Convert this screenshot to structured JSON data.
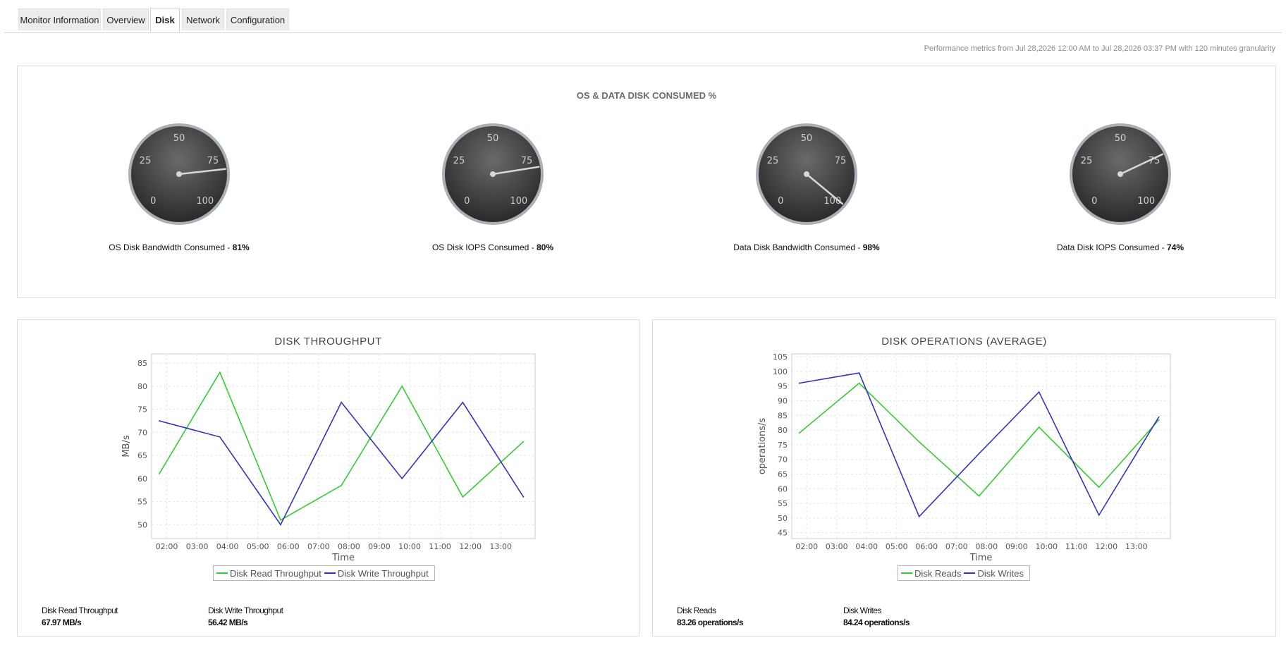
{
  "tabs": [
    "Monitor Information",
    "Overview",
    "Disk",
    "Network",
    "Configuration"
  ],
  "active_tab": "Disk",
  "perf_note": "Performance metrics from Jul 28,2026 12:00 AM to Jul 28,2026 03:37 PM with 120 minutes granularity",
  "gauges_panel": {
    "title": "OS & DATA DISK CONSUMED %",
    "gauges": [
      {
        "label": "OS Disk Bandwidth Consumed - ",
        "value_text": "81%",
        "value": 81
      },
      {
        "label": "OS Disk IOPS Consumed - ",
        "value_text": "80%",
        "value": 80
      },
      {
        "label": "Data Disk Bandwidth Consumed - ",
        "value_text": "98%",
        "value": 98
      },
      {
        "label": "Data Disk IOPS Consumed - ",
        "value_text": "74%",
        "value": 74
      }
    ],
    "scale_ticks": [
      "0",
      "25",
      "50",
      "75",
      "100"
    ]
  },
  "throughput_panel": {
    "stats": [
      {
        "label": "Disk Read Throughput",
        "value": "67.97 MB/s"
      },
      {
        "label": "Disk Write Throughput",
        "value": "56.42 MB/s"
      }
    ]
  },
  "operations_panel": {
    "stats": [
      {
        "label": "Disk Reads",
        "value": "83.26 operations/s"
      },
      {
        "label": "Disk Writes",
        "value": "84.24 operations/s"
      }
    ]
  },
  "chart_data": [
    {
      "type": "line",
      "title": "DISK THROUGHPUT",
      "xlabel": "Time",
      "ylabel": "MB/s",
      "x_ticks": [
        "02:00",
        "03:00",
        "04:00",
        "05:00",
        "06:00",
        "07:00",
        "08:00",
        "09:00",
        "10:00",
        "11:00",
        "12:00",
        "13:00"
      ],
      "x": [
        "01:45",
        "03:45",
        "05:45",
        "07:45",
        "09:45",
        "11:45",
        "13:45"
      ],
      "ylim": [
        47,
        87
      ],
      "y_ticks": [
        50,
        55,
        60,
        65,
        70,
        75,
        80,
        85
      ],
      "grid": true,
      "legend": "bottom",
      "series": [
        {
          "name": "Disk Read Throughput",
          "color": "#33cc33",
          "values": [
            61,
            83,
            51,
            58.5,
            80,
            56,
            68
          ]
        },
        {
          "name": "Disk Write Throughput",
          "color": "#3333bb",
          "values": [
            72.5,
            69,
            50,
            76.5,
            60,
            76.5,
            56
          ]
        }
      ]
    },
    {
      "type": "line",
      "title": "DISK OPERATIONS (AVERAGE)",
      "xlabel": "Time",
      "ylabel": "operations/s",
      "x_ticks": [
        "02:00",
        "03:00",
        "04:00",
        "05:00",
        "06:00",
        "07:00",
        "08:00",
        "09:00",
        "10:00",
        "11:00",
        "12:00",
        "13:00"
      ],
      "x": [
        "01:45",
        "03:45",
        "05:45",
        "07:45",
        "09:45",
        "11:45",
        "13:45"
      ],
      "ylim": [
        43,
        106
      ],
      "y_ticks": [
        45,
        50,
        55,
        60,
        65,
        70,
        75,
        80,
        85,
        90,
        95,
        100,
        105
      ],
      "grid": true,
      "legend": "bottom",
      "series": [
        {
          "name": "Disk Reads",
          "color": "#33cc33",
          "values": [
            79,
            96,
            76,
            57.5,
            81,
            60.5,
            83.5
          ]
        },
        {
          "name": "Disk Writes",
          "color": "#3333bb",
          "values": [
            96,
            99.5,
            50.5,
            72,
            93,
            51,
            84.5
          ]
        }
      ]
    }
  ]
}
